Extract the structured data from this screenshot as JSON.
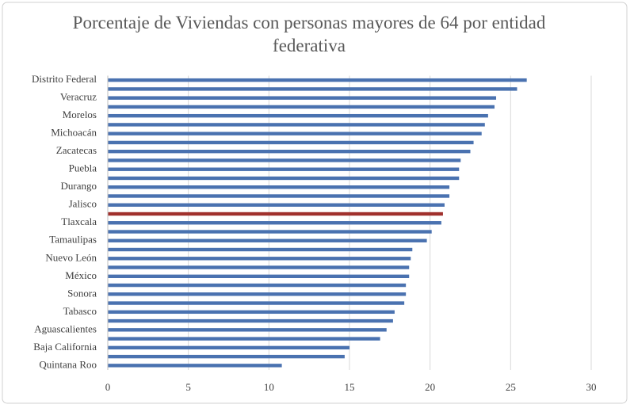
{
  "chart_data": {
    "type": "hbar",
    "title": "Porcentaje de Viviendas con personas mayores de 64 por entidad federativa",
    "categories": [
      "Distrito Federal",
      null,
      "Veracruz",
      null,
      "Morelos",
      null,
      "Michoacán",
      null,
      "Zacatecas",
      null,
      "Puebla",
      null,
      "Durango",
      null,
      "Jalisco",
      null,
      "Tlaxcala",
      null,
      "Tamaulipas",
      null,
      "Nuevo León",
      null,
      "México",
      null,
      "Sonora",
      null,
      "Tabasco",
      null,
      "Aguascalientes",
      null,
      "Baja California",
      null,
      "Quintana Roo"
    ],
    "values": [
      26.0,
      25.4,
      24.1,
      24.0,
      23.6,
      23.4,
      23.2,
      22.7,
      22.5,
      21.9,
      21.8,
      21.8,
      21.2,
      21.2,
      20.9,
      20.8,
      20.7,
      20.1,
      19.8,
      18.9,
      18.8,
      18.7,
      18.7,
      18.5,
      18.5,
      18.4,
      17.8,
      17.7,
      17.3,
      16.9,
      15.0,
      14.7,
      10.8
    ],
    "colors": [
      "#4a72b0",
      "#4a72b0",
      "#4a72b0",
      "#4a72b0",
      "#4a72b0",
      "#4a72b0",
      "#4a72b0",
      "#4a72b0",
      "#4a72b0",
      "#4a72b0",
      "#4a72b0",
      "#4a72b0",
      "#4a72b0",
      "#4a72b0",
      "#4a72b0",
      "#a0302c",
      "#4a72b0",
      "#4a72b0",
      "#4a72b0",
      "#4a72b0",
      "#4a72b0",
      "#4a72b0",
      "#4a72b0",
      "#4a72b0",
      "#4a72b0",
      "#4a72b0",
      "#4a72b0",
      "#4a72b0",
      "#4a72b0",
      "#4a72b0",
      "#4a72b0",
      "#4a72b0",
      "#4a72b0"
    ],
    "xlim": [
      0,
      30
    ],
    "xticks": [
      0,
      5,
      10,
      15,
      20,
      25,
      30
    ],
    "grid": true
  }
}
